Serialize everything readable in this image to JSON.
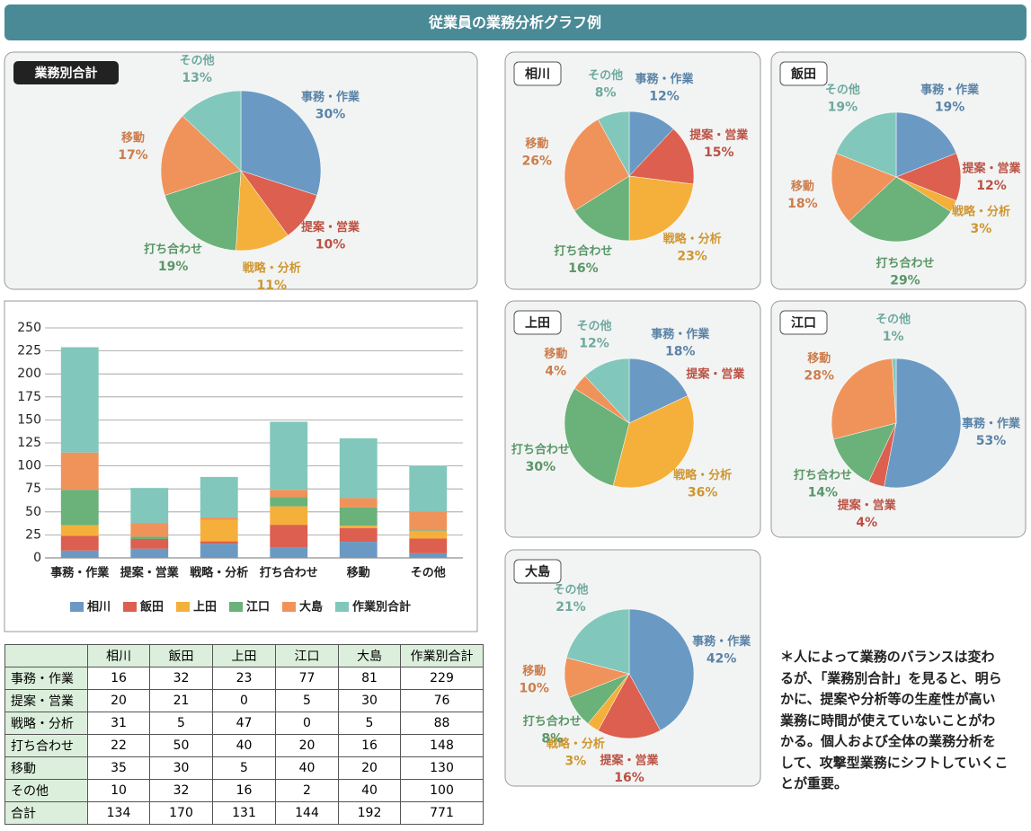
{
  "header": {
    "title": "従業員の業務分析グラフ例"
  },
  "chart_data": [
    {
      "type": "pie",
      "title": "業務別合計",
      "categories": [
        "事務・作業",
        "提案・営業",
        "戦略・分析",
        "打ち合わせ",
        "移動",
        "その他"
      ],
      "values": [
        30,
        10,
        11,
        19,
        17,
        13
      ],
      "value_labels": [
        "30%",
        "10%",
        "11%",
        "19%",
        "17%",
        "13%"
      ],
      "colors": [
        "#6a9ac4",
        "#dc5f50",
        "#f4b03a",
        "#6ab17a",
        "#f0935a",
        "#82c7bb"
      ]
    },
    {
      "type": "pie",
      "title": "相川",
      "categories": [
        "事務・作業",
        "提案・営業",
        "戦略・分析",
        "打ち合わせ",
        "移動",
        "その他"
      ],
      "values": [
        12,
        15,
        23,
        16,
        26,
        8
      ],
      "value_labels": [
        "12%",
        "15%",
        "23%",
        "16%",
        "26%",
        "8%"
      ],
      "colors": [
        "#6a9ac4",
        "#dc5f50",
        "#f4b03a",
        "#6ab17a",
        "#f0935a",
        "#82c7bb"
      ]
    },
    {
      "type": "pie",
      "title": "飯田",
      "categories": [
        "事務・作業",
        "提案・営業",
        "戦略・分析",
        "打ち合わせ",
        "移動",
        "その他"
      ],
      "values": [
        19,
        12,
        3,
        29,
        18,
        19
      ],
      "value_labels": [
        "19%",
        "12%",
        "3%",
        "29%",
        "18%",
        "19%"
      ],
      "colors": [
        "#6a9ac4",
        "#dc5f50",
        "#f4b03a",
        "#6ab17a",
        "#f0935a",
        "#82c7bb"
      ]
    },
    {
      "type": "pie",
      "title": "上田",
      "categories": [
        "事務・作業",
        "提案・営業",
        "戦略・分析",
        "打ち合わせ",
        "移動",
        "その他"
      ],
      "values": [
        18,
        0,
        36,
        30,
        4,
        12
      ],
      "value_labels": [
        "18%",
        null,
        "36%",
        "30%",
        "4%",
        "12%"
      ],
      "colors": [
        "#6a9ac4",
        "#dc5f50",
        "#f4b03a",
        "#6ab17a",
        "#f0935a",
        "#82c7bb"
      ]
    },
    {
      "type": "pie",
      "title": "江口",
      "categories": [
        "事務・作業",
        "提案・営業",
        null,
        "打ち合わせ",
        "移動",
        "その他"
      ],
      "values": [
        53,
        4,
        0,
        14,
        28,
        1
      ],
      "value_labels": [
        "53%",
        "4%",
        null,
        "14%",
        "28%",
        "1%"
      ],
      "colors": [
        "#6a9ac4",
        "#dc5f50",
        "#f4b03a",
        "#6ab17a",
        "#f0935a",
        "#82c7bb"
      ]
    },
    {
      "type": "pie",
      "title": "大島",
      "categories": [
        "事務・作業",
        "提案・営業",
        "戦略・分析",
        "打ち合わせ",
        "移動",
        "その他"
      ],
      "values": [
        42,
        16,
        3,
        8,
        10,
        21
      ],
      "value_labels": [
        "42%",
        "16%",
        "3%",
        "8%",
        "10%",
        "21%"
      ],
      "colors": [
        "#6a9ac4",
        "#dc5f50",
        "#f4b03a",
        "#6ab17a",
        "#f0935a",
        "#82c7bb"
      ]
    },
    {
      "type": "bar",
      "stacked": true,
      "categories": [
        "事務・作業",
        "提案・営業",
        "戦略・分析",
        "打ち合わせ",
        "移動",
        "その他"
      ],
      "series": [
        {
          "name": "相川",
          "color": "#6a9ac4",
          "values": [
            8,
            10,
            15.5,
            11,
            17.5,
            5
          ]
        },
        {
          "name": "飯田",
          "color": "#dc5f50",
          "values": [
            16,
            10.5,
            2.5,
            25,
            15,
            16
          ]
        },
        {
          "name": "上田",
          "color": "#f4b03a",
          "values": [
            11.5,
            0,
            23.5,
            20,
            2.5,
            8
          ]
        },
        {
          "name": "江口",
          "color": "#6ab17a",
          "values": [
            38.5,
            2.5,
            0,
            10,
            20,
            1
          ]
        },
        {
          "name": "大島",
          "color": "#f0935a",
          "values": [
            40.5,
            15,
            2.5,
            8,
            10,
            20
          ]
        },
        {
          "name": "作業別合計",
          "color": "#82c7bb",
          "values": [
            114.5,
            38,
            44,
            74,
            65,
            50
          ]
        }
      ],
      "ylim": [
        0,
        250
      ],
      "yticks": [
        0,
        25,
        50,
        75,
        100,
        125,
        150,
        175,
        200,
        225,
        250
      ],
      "grid": true,
      "legend": "bottom"
    }
  ],
  "table": {
    "columns": [
      "相川",
      "飯田",
      "上田",
      "江口",
      "大島",
      "作業別合計"
    ],
    "rows": [
      [
        "事務・作業",
        16,
        32,
        23,
        77,
        81,
        229
      ],
      [
        "提案・営業",
        20,
        21,
        0,
        5,
        30,
        76
      ],
      [
        "戦略・分析",
        31,
        5,
        47,
        0,
        5,
        88
      ],
      [
        "打ち合わせ",
        22,
        50,
        40,
        20,
        16,
        148
      ],
      [
        "移動",
        35,
        30,
        5,
        40,
        20,
        130
      ],
      [
        "その他",
        10,
        32,
        16,
        2,
        40,
        100
      ],
      [
        "合計",
        134,
        170,
        131,
        144,
        192,
        771
      ]
    ]
  },
  "note": {
    "lines": [
      "＊人によって業務のバランスは変わ",
      "るが、「業務別合計」を見ると、明ら",
      "かに、提案や分析等の生産性が高い",
      "業務に時間が使えていないことがわ",
      "かる。個人および全体の業務分析を",
      "して、攻撃型業務にシフトしていくこ",
      "とが重要。"
    ]
  }
}
